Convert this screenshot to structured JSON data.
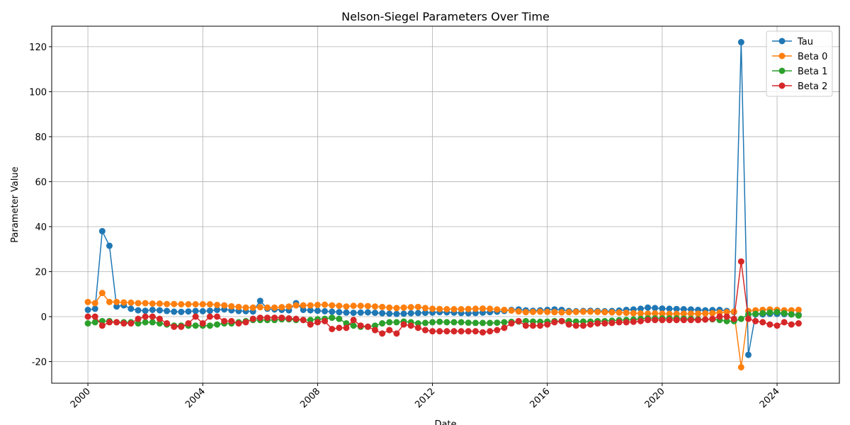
{
  "chart_data": {
    "type": "line",
    "title": "Nelson-Siegel Parameters Over Time",
    "x_label": "Date",
    "y_label": "Parameter Value",
    "x": [
      2000,
      2000.25,
      2000.5,
      2000.75,
      2001,
      2001.25,
      2001.5,
      2001.75,
      2002,
      2002.25,
      2002.5,
      2002.75,
      2003,
      2003.25,
      2003.5,
      2003.75,
      2004,
      2004.25,
      2004.5,
      2004.75,
      2005,
      2005.25,
      2005.5,
      2005.75,
      2006,
      2006.25,
      2006.5,
      2006.75,
      2007,
      2007.25,
      2007.5,
      2007.75,
      2008,
      2008.25,
      2008.5,
      2008.75,
      2009,
      2009.25,
      2009.5,
      2009.75,
      2010,
      2010.25,
      2010.5,
      2010.75,
      2011,
      2011.25,
      2011.5,
      2011.75,
      2012,
      2012.25,
      2012.5,
      2012.75,
      2013,
      2013.25,
      2013.5,
      2013.75,
      2014,
      2014.25,
      2014.5,
      2014.75,
      2015,
      2015.25,
      2015.5,
      2015.75,
      2016,
      2016.25,
      2016.5,
      2016.75,
      2017,
      2017.25,
      2017.5,
      2017.75,
      2018,
      2018.25,
      2018.5,
      2018.75,
      2019,
      2019.25,
      2019.5,
      2019.75,
      2020,
      2020.25,
      2020.5,
      2020.75,
      2021,
      2021.25,
      2021.5,
      2021.75,
      2022,
      2022.25,
      2022.5,
      2022.75,
      2023,
      2023.25,
      2023.5,
      2023.75,
      2024,
      2024.25,
      2024.5,
      2024.75
    ],
    "series": [
      {
        "name": "Tau",
        "color": "#1f77b4",
        "values": [
          3,
          3.5,
          38,
          31.5,
          4.5,
          5,
          3.5,
          2.8,
          2.6,
          3,
          2.8,
          2.5,
          2.2,
          2.1,
          2.3,
          2.5,
          2.4,
          2.6,
          3,
          3.2,
          2.8,
          2.5,
          2.4,
          2.3,
          7,
          3.5,
          3.2,
          3,
          2.8,
          6,
          3,
          2.8,
          2.6,
          2.4,
          2.2,
          2,
          1.8,
          1.7,
          1.8,
          1.9,
          1.7,
          1.5,
          1.3,
          1.2,
          1.3,
          1.5,
          1.6,
          1.7,
          1.8,
          2,
          1.9,
          1.8,
          1.6,
          1.5,
          1.6,
          1.8,
          2,
          2.2,
          2.5,
          3,
          3.2,
          2.8,
          2.6,
          2.8,
          3,
          3.2,
          3,
          2.5,
          2.4,
          2.5,
          2.6,
          2.5,
          2.4,
          2.5,
          2.7,
          3,
          3.2,
          3.5,
          4,
          3.8,
          3.6,
          3.5,
          3.4,
          3.3,
          3.2,
          3,
          2.8,
          2.9,
          3,
          2.5,
          2,
          122,
          -17,
          1,
          1,
          1.2,
          1.2,
          1.1,
          1,
          0.8
        ]
      },
      {
        "name": "Beta 0",
        "color": "#ff7f0e",
        "values": [
          6.5,
          6,
          10.5,
          6.5,
          6.5,
          6.3,
          6.2,
          6,
          6,
          5.8,
          5.8,
          5.6,
          5.6,
          5.5,
          5.5,
          5.5,
          5.5,
          5.5,
          5.2,
          5,
          4.6,
          4.3,
          4,
          4,
          4.2,
          4,
          4,
          4.2,
          4.5,
          5,
          5,
          5,
          5.2,
          5.3,
          5,
          4.8,
          4.5,
          4.8,
          4.8,
          4.7,
          4.5,
          4.3,
          4,
          3.8,
          4,
          4.2,
          4.3,
          3.8,
          3.5,
          3.4,
          3.3,
          3.3,
          3.3,
          3.4,
          3.5,
          3.6,
          3.5,
          3.2,
          3,
          2.7,
          2.3,
          2,
          2.1,
          2.2,
          2.1,
          2,
          1.9,
          2,
          2.1,
          2.2,
          2.2,
          2.1,
          2,
          1.9,
          1.8,
          1.7,
          1.5,
          1.4,
          1.3,
          1.4,
          1.3,
          1.2,
          1.2,
          1.3,
          1.3,
          1.3,
          1.4,
          1.5,
          1.8,
          2,
          2.2,
          -22.5,
          2.5,
          2.8,
          3,
          3.2,
          3,
          2.8,
          2.8,
          3
        ]
      },
      {
        "name": "Beta 1",
        "color": "#2ca02c",
        "values": [
          -3,
          -2.5,
          -2,
          -2,
          -2.5,
          -2.5,
          -2.5,
          -3,
          -2.5,
          -2.5,
          -3,
          -3.5,
          -4,
          -4,
          -4,
          -4,
          -4,
          -4,
          -3.5,
          -3,
          -3,
          -2.5,
          -2,
          -1.5,
          -1.5,
          -1.5,
          -1.5,
          -1.2,
          -1.2,
          -1.5,
          -1.5,
          -1.5,
          -1.2,
          -1,
          -0.5,
          -1,
          -3,
          -4,
          -4.5,
          -4.5,
          -4,
          -3,
          -2.5,
          -2.5,
          -2.2,
          -2.5,
          -3,
          -2.8,
          -2.5,
          -2.3,
          -2.5,
          -2.5,
          -2.5,
          -2.7,
          -2.8,
          -2.8,
          -2.8,
          -2.7,
          -2.5,
          -2.3,
          -2.2,
          -2,
          -2.2,
          -2.3,
          -2.2,
          -2,
          -2,
          -2,
          -2.2,
          -2.2,
          -2.2,
          -2,
          -2,
          -1.8,
          -1.6,
          -1.5,
          -1.3,
          -1,
          -0.8,
          -0.8,
          -0.8,
          -0.8,
          -0.8,
          -0.9,
          -1,
          -1.2,
          -1.3,
          -1.2,
          -1.5,
          -2,
          -2,
          -1,
          1,
          1.2,
          1.5,
          1.8,
          2,
          1.5,
          1,
          0.5
        ]
      },
      {
        "name": "Beta 2",
        "color": "#d62728",
        "values": [
          0,
          0,
          -4,
          -2.5,
          -2.5,
          -3,
          -3,
          -1,
          0,
          0,
          -1,
          -3,
          -4.5,
          -4.5,
          -3,
          0,
          -3,
          0,
          0,
          -2,
          -2,
          -3,
          -2.5,
          -1,
          -0.5,
          -0.5,
          -0.5,
          -0.5,
          -0.8,
          -1,
          -1.5,
          -3.5,
          -2.5,
          -2,
          -5.5,
          -5,
          -5,
          -1.5,
          -4,
          -4.5,
          -6,
          -7.5,
          -6,
          -7.5,
          -3.5,
          -4,
          -5,
          -6,
          -6.5,
          -6.5,
          -6.5,
          -6.5,
          -6.5,
          -6.5,
          -6.5,
          -7,
          -6.5,
          -6,
          -5,
          -3,
          -2,
          -4,
          -4,
          -4,
          -3.5,
          -2.5,
          -2,
          -3.5,
          -4,
          -4,
          -3.5,
          -3,
          -3,
          -2.8,
          -2.5,
          -2.5,
          -2.3,
          -2,
          -1.5,
          -1.5,
          -1.5,
          -1.5,
          -1.5,
          -1.5,
          -1.5,
          -1.5,
          -1.3,
          -1,
          0,
          0,
          -1,
          24.5,
          -1,
          -2,
          -2.5,
          -3.5,
          -4,
          -2.5,
          -3.5,
          -3
        ]
      }
    ],
    "xlim": [
      1998.74,
      2026.17
    ],
    "ylim": [
      -29.6,
      129.1
    ],
    "xticks": [
      2000,
      2004,
      2008,
      2012,
      2016,
      2020,
      2024
    ],
    "yticks": [
      -20,
      0,
      20,
      40,
      60,
      80,
      100,
      120
    ],
    "grid": true,
    "legend": "upper right"
  }
}
